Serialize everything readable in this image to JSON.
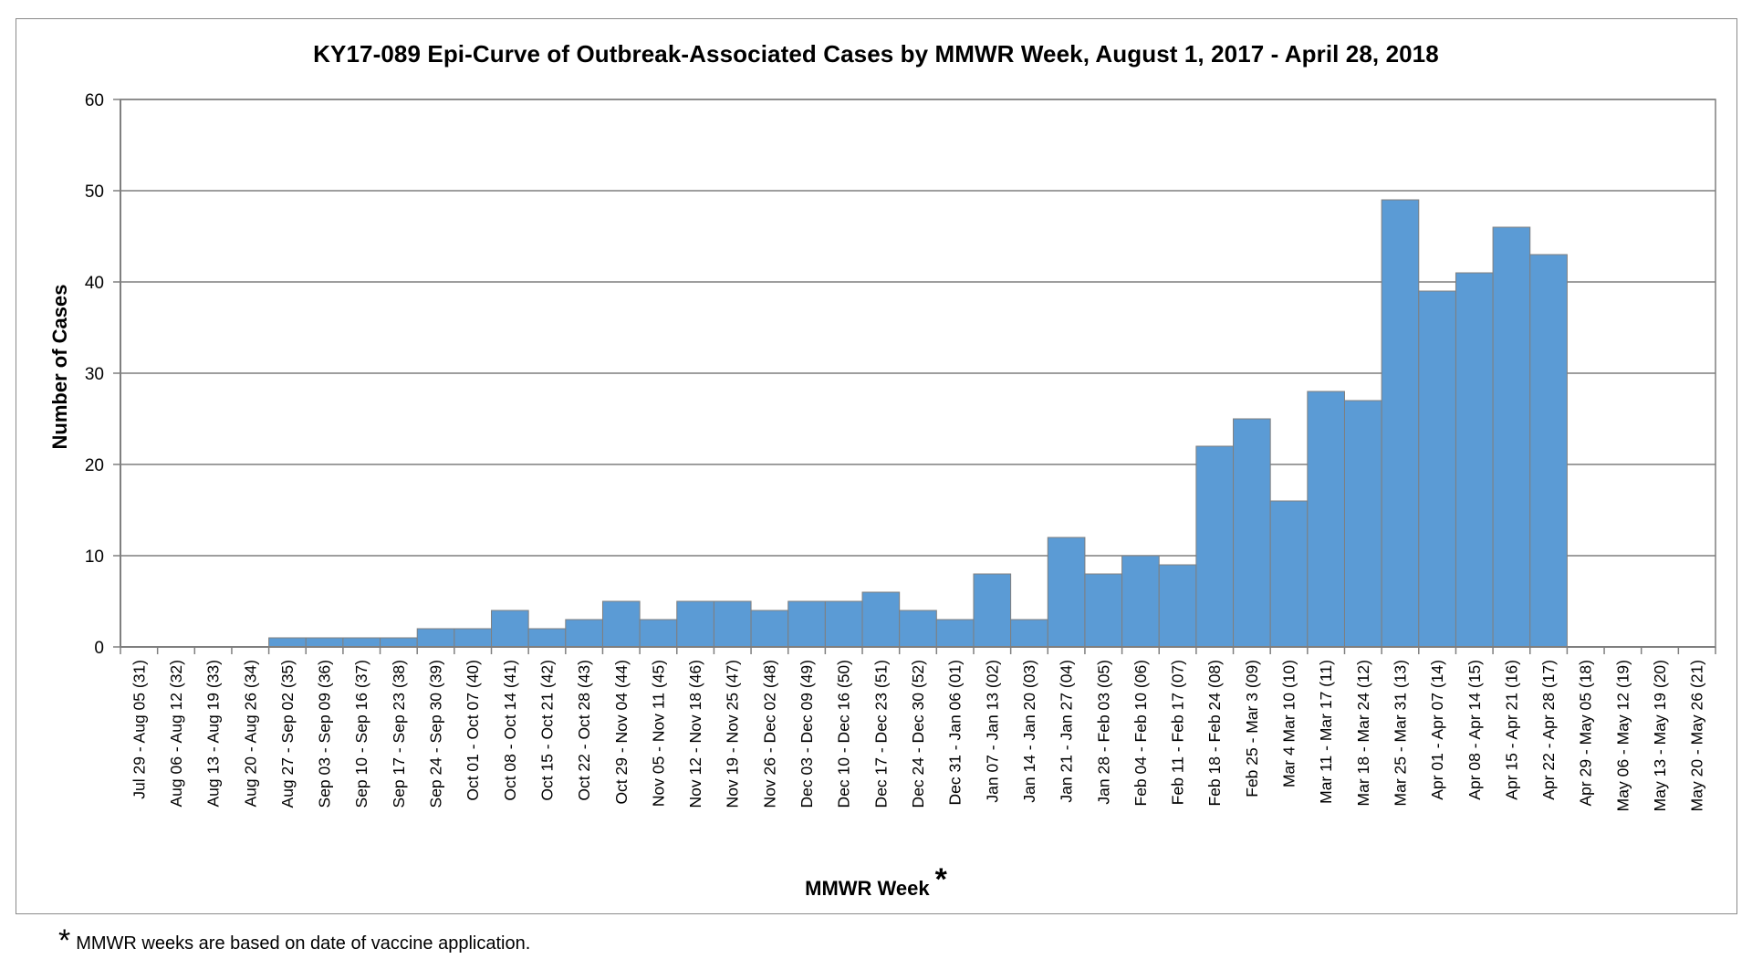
{
  "footnote": {
    "marker": "*",
    "text": "MMWR weeks are based on date of vaccine application."
  },
  "colors": {
    "bar_fill": "#5b9bd5",
    "bar_stroke": "#7f7f7f",
    "grid": "#7f7f7f",
    "axis": "#7f7f7f"
  },
  "chart_data": {
    "type": "bar",
    "title": "KY17-089 Epi-Curve of Outbreak-Associated Cases by MMWR Week, August 1, 2017 - April 28, 2018",
    "xlabel": "MMWR Week",
    "xlabel_marker": "*",
    "ylabel": "Number of Cases",
    "ylim": [
      0,
      60
    ],
    "yticks": [
      0,
      10,
      20,
      30,
      40,
      50,
      60
    ],
    "grid": true,
    "legend": "none",
    "categories": [
      "Jul 29 - Aug 05 (31)",
      "Aug 06 - Aug 12 (32)",
      "Aug 13 - Aug 19 (33)",
      "Aug 20 - Aug 26 (34)",
      "Aug 27 - Sep 02 (35)",
      "Sep 03 - Sep 09 (36)",
      "Sep 10 - Sep 16 (37)",
      "Sep 17 - Sep 23 (38)",
      "Sep 24 - Sep 30 (39)",
      "Oct 01 - Oct 07 (40)",
      "Oct 08 - Oct 14 (41)",
      "Oct 15 - Oct 21 (42)",
      "Oct 22 - Oct 28 (43)",
      "Oct 29 - Nov 04 (44)",
      "Nov 05 - Nov 11 (45)",
      "Nov 12 - Nov 18 (46)",
      "Nov 19 - Nov 25 (47)",
      "Nov 26 - Dec 02 (48)",
      "Dec 03 - Dec 09 (49)",
      "Dec 10 - Dec 16 (50)",
      "Dec 17 - Dec 23 (51)",
      "Dec 24 - Dec 30 (52)",
      "Dec 31 - Jan 06 (01)",
      "Jan 07 - Jan 13 (02)",
      "Jan 14 - Jan 20 (03)",
      "Jan 21 - Jan 27 (04)",
      "Jan 28 - Feb 03 (05)",
      "Feb 04 - Feb 10 (06)",
      "Feb 11 - Feb 17 (07)",
      "Feb 18 - Feb 24 (08)",
      "Feb 25 - Mar 3 (09)",
      "Mar 4 Mar 10 (10)",
      "Mar 11 - Mar 17 (11)",
      "Mar 18 - Mar 24 (12)",
      "Mar 25 - Mar 31 (13)",
      "Apr 01 - Apr 07 (14)",
      "Apr 08 - Apr 14 (15)",
      "Apr 15 - Apr 21 (16)",
      "Apr 22 - Apr 28 (17)",
      "Apr 29 - May 05 (18)",
      "May 06 - May 12 (19)",
      "May 13 - May 19 (20)",
      "May 20 - May 26 (21)"
    ],
    "values": [
      0,
      0,
      0,
      0,
      1,
      1,
      1,
      1,
      2,
      2,
      4,
      2,
      3,
      5,
      3,
      5,
      5,
      4,
      5,
      5,
      6,
      4,
      3,
      8,
      3,
      12,
      8,
      10,
      9,
      22,
      25,
      16,
      28,
      27,
      49,
      39,
      41,
      46,
      43,
      0,
      0,
      0,
      0
    ]
  }
}
